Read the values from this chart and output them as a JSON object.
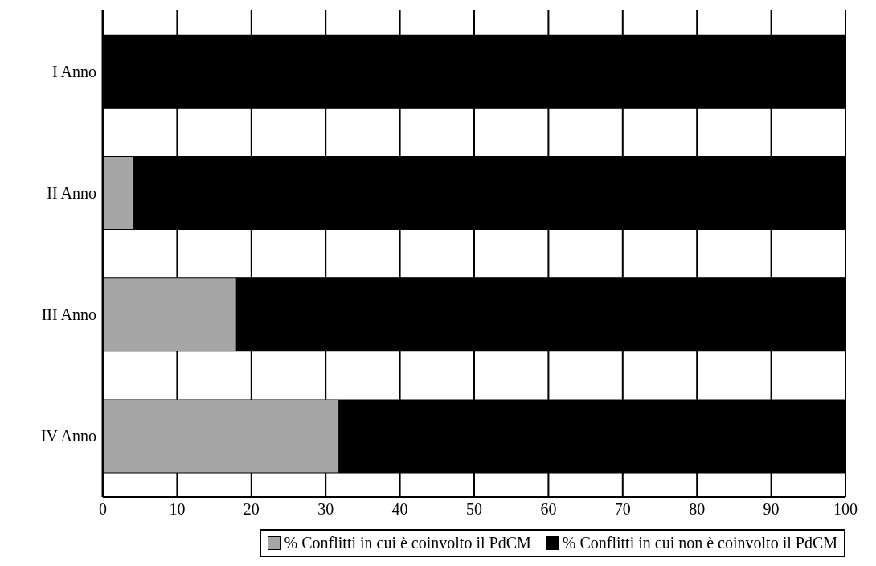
{
  "chart_data": {
    "type": "bar",
    "orientation": "horizontal",
    "stacked": true,
    "categories": [
      "I Anno",
      "II Anno",
      "III Anno",
      "IV Anno"
    ],
    "series": [
      {
        "name": "% Conflitti in cui è coinvolto il PdCM",
        "color": "#a6a6a6",
        "values": [
          0,
          4.2,
          18,
          31.8
        ]
      },
      {
        "name": "% Conflitti in cui non è coinvolto il PdCM",
        "color": "#000000",
        "values": [
          100,
          95.8,
          82,
          68.2
        ]
      }
    ],
    "xlim": [
      0,
      100
    ],
    "xticks": [
      0,
      10,
      20,
      30,
      40,
      50,
      60,
      70,
      80,
      90,
      100
    ],
    "grid": "x",
    "legend": "bottom"
  }
}
